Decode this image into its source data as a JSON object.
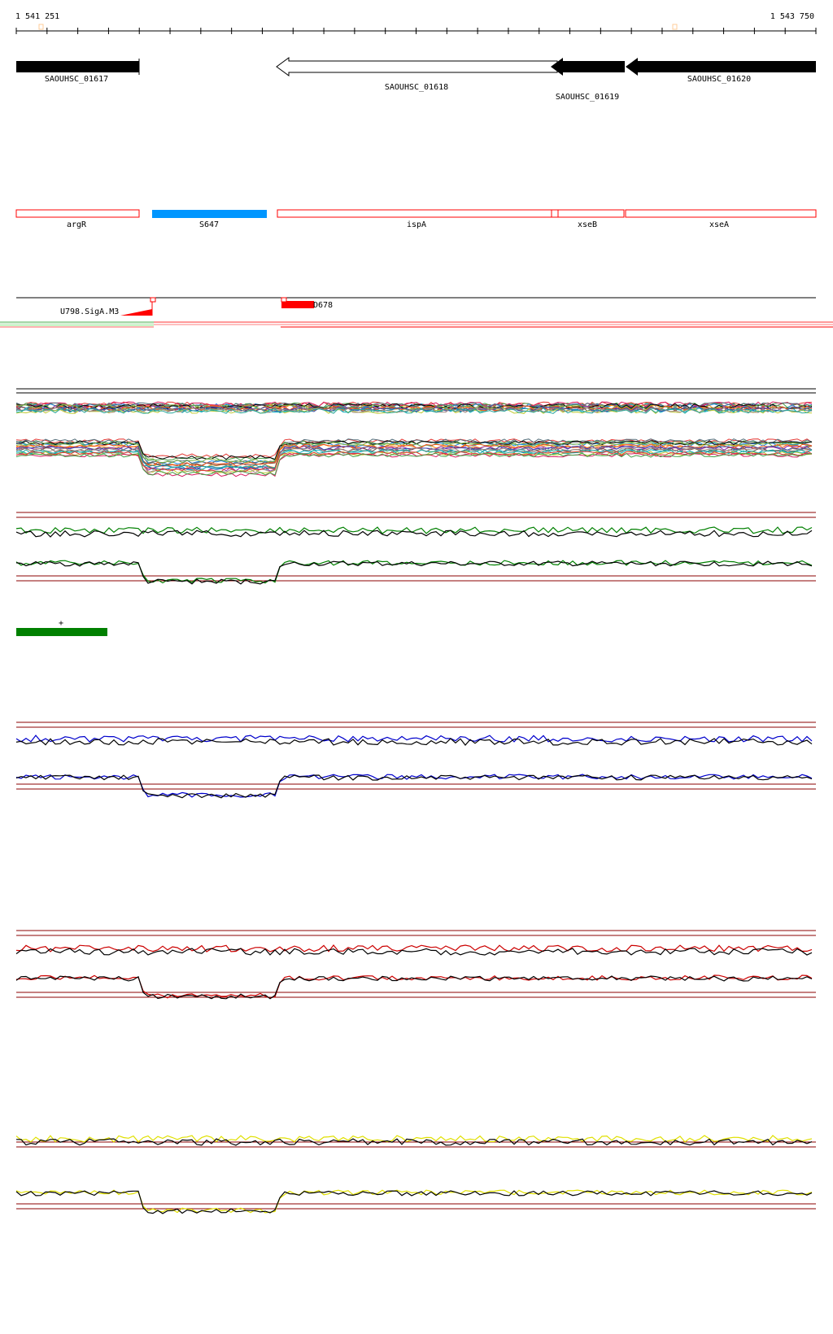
{
  "ruler": {
    "start_label": "1 541 251",
    "end_label": "1 543 750"
  },
  "genes": [
    {
      "id": "SAOUHSC_01617",
      "label": "SAOUHSC_01617",
      "strand": "+",
      "fill": "#000000"
    },
    {
      "id": "SAOUHSC_01618",
      "label": "SAOUHSC_01618",
      "strand": "-",
      "fill": "#ffffff"
    },
    {
      "id": "SAOUHSC_01619",
      "label": "SAOUHSC_01619",
      "strand": "-",
      "fill": "#000000"
    },
    {
      "id": "SAOUHSC_01620",
      "label": "SAOUHSC_01620",
      "strand": "-",
      "fill": "#000000"
    }
  ],
  "annotations": [
    {
      "label": "argR",
      "color": "#ff0000",
      "filled": false
    },
    {
      "label": "S647",
      "color": "#0096ff",
      "filled": true
    },
    {
      "label": "ispA",
      "color": "#ff0000",
      "filled": false
    },
    {
      "label": "xseB",
      "color": "#ff0000",
      "filled": false
    },
    {
      "label": "xseA",
      "color": "#ff0000",
      "filled": false
    }
  ],
  "features": [
    {
      "label": "U798.SigA.M3",
      "color": "#ff0000"
    },
    {
      "label": "D678",
      "color": "#ff0000"
    }
  ],
  "motif_track": {
    "label": "+",
    "color": "#008000"
  },
  "track_colors": {
    "condition_1": "#008000",
    "condition_2": "#0000cc",
    "condition_3": "#cc0000",
    "condition_4": "#e0e000",
    "reference": "#000000",
    "threshold": "#8b0000"
  }
}
